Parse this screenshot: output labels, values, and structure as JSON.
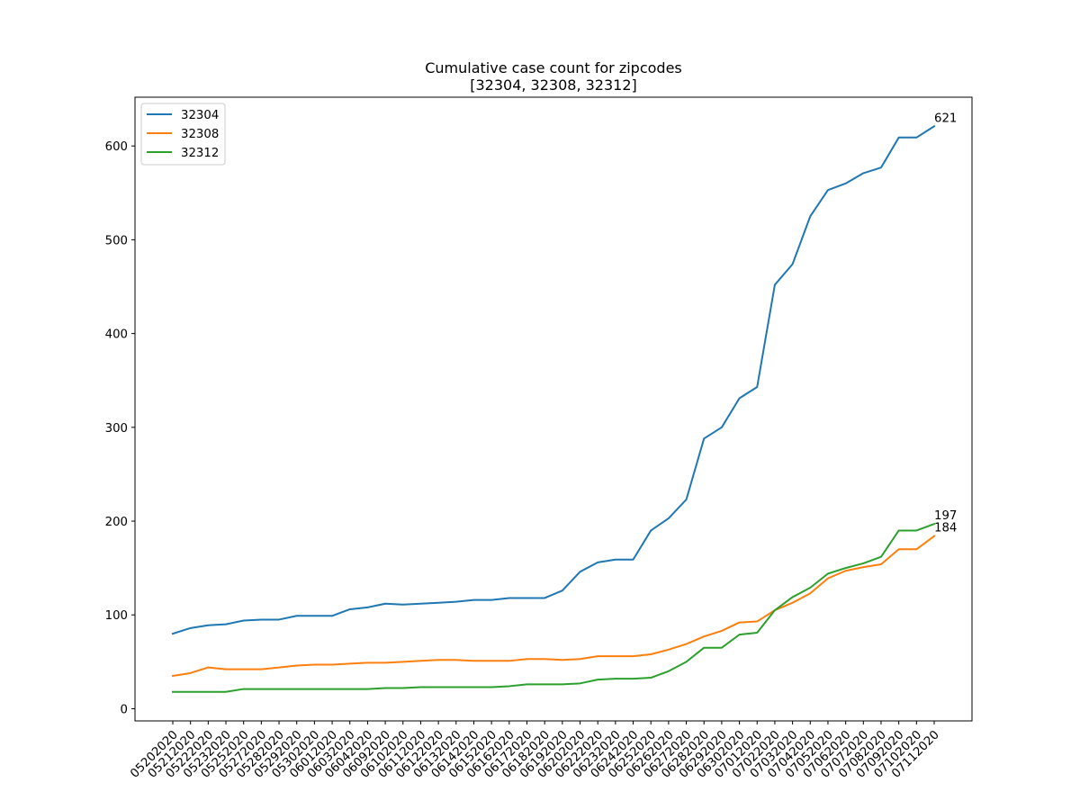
{
  "chart_data": {
    "type": "line",
    "title_line1": "Cumulative case count for zipcodes",
    "title_line2": "[32304, 32308, 32312]",
    "xlabel": "",
    "ylabel": "",
    "ylim": [
      -13,
      652
    ],
    "yticks": [
      0,
      100,
      200,
      300,
      400,
      500,
      600
    ],
    "grid": false,
    "legend_position": "top-left",
    "categories": [
      "05202020",
      "05212020",
      "05222020",
      "05232020",
      "05252020",
      "05272020",
      "05282020",
      "05292020",
      "05302020",
      "06012020",
      "06032020",
      "06042020",
      "06092020",
      "06102020",
      "06112020",
      "06122020",
      "06132020",
      "06142020",
      "06152020",
      "06162020",
      "06172020",
      "06182020",
      "06192020",
      "06202020",
      "06222020",
      "06232020",
      "06242020",
      "06252020",
      "06262020",
      "06272020",
      "06282020",
      "06292020",
      "06302020",
      "07012020",
      "07022020",
      "07032020",
      "07042020",
      "07052020",
      "07062020",
      "07072020",
      "07082020",
      "07092020",
      "07102020",
      "07112020"
    ],
    "series": [
      {
        "name": "32304",
        "color": "#1f77b4",
        "values": [
          80,
          86,
          89,
          90,
          94,
          95,
          95,
          99,
          99,
          99,
          106,
          108,
          112,
          111,
          112,
          113,
          114,
          116,
          116,
          118,
          118,
          118,
          126,
          146,
          156,
          159,
          159,
          190,
          203,
          223,
          288,
          300,
          331,
          343,
          452,
          474,
          525,
          553,
          560,
          571,
          577,
          609,
          609,
          621
        ],
        "end_label": "621"
      },
      {
        "name": "32308",
        "color": "#ff7f0e",
        "values": [
          35,
          38,
          44,
          42,
          42,
          42,
          44,
          46,
          47,
          47,
          48,
          49,
          49,
          50,
          51,
          52,
          52,
          51,
          51,
          51,
          53,
          53,
          52,
          53,
          56,
          56,
          56,
          58,
          63,
          69,
          77,
          83,
          92,
          93,
          105,
          113,
          123,
          139,
          147,
          151,
          154,
          170,
          170,
          184
        ],
        "end_label": "184"
      },
      {
        "name": "32312",
        "color": "#2ca02c",
        "values": [
          18,
          18,
          18,
          18,
          21,
          21,
          21,
          21,
          21,
          21,
          21,
          21,
          22,
          22,
          23,
          23,
          23,
          23,
          23,
          24,
          26,
          26,
          26,
          27,
          31,
          32,
          32,
          33,
          40,
          50,
          65,
          65,
          79,
          81,
          105,
          119,
          129,
          144,
          150,
          155,
          162,
          190,
          190,
          197
        ],
        "end_label": "197"
      }
    ]
  }
}
